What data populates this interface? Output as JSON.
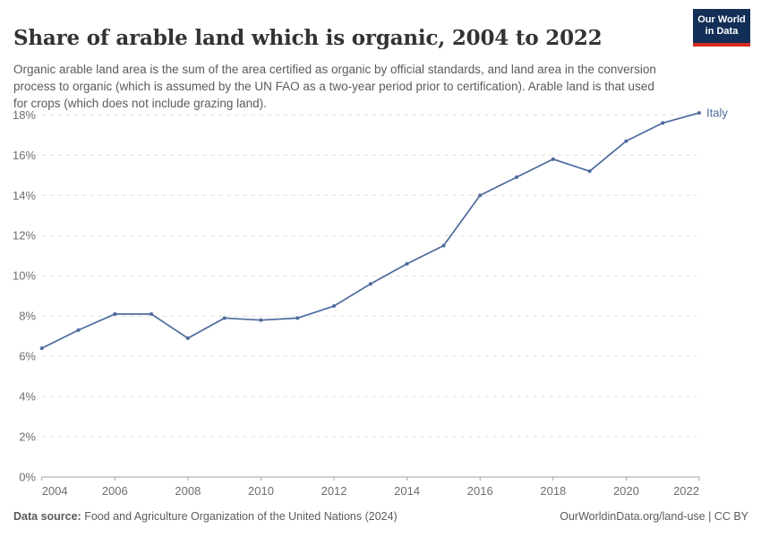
{
  "header": {
    "title": "Share of arable land which is organic, 2004 to 2022",
    "subtitle": "Organic arable land area is the sum of the area certified as organic by official standards, and land area in the conversion process to organic (which is assumed by the UN FAO as a two-year period prior to certification). Arable land is that used for crops (which does not include grazing land).",
    "logo": {
      "line1": "Our World",
      "line2": "in Data"
    }
  },
  "chart_data": {
    "type": "line",
    "title": "Share of arable land which is organic, 2004 to 2022",
    "x": [
      2004,
      2005,
      2006,
      2007,
      2008,
      2009,
      2010,
      2011,
      2012,
      2013,
      2014,
      2015,
      2016,
      2017,
      2018,
      2019,
      2020,
      2021,
      2022
    ],
    "series": [
      {
        "name": "Italy",
        "color": "#4C6A9C",
        "values": [
          6.4,
          7.3,
          8.1,
          8.1,
          6.9,
          7.9,
          7.8,
          7.9,
          8.5,
          9.6,
          10.6,
          11.5,
          14.0,
          14.9,
          15.8,
          15.2,
          16.7,
          17.6,
          18.1
        ]
      }
    ],
    "xlabel": "",
    "ylabel": "",
    "xlim": [
      2004,
      2022
    ],
    "ylim": [
      0,
      18
    ],
    "ytick_step": 2,
    "ytick_suffix": "%",
    "xticks": [
      2004,
      2006,
      2008,
      2010,
      2012,
      2014,
      2016,
      2018,
      2020,
      2022
    ],
    "grid": "horizontal-dashed",
    "legend_position": "end-of-line",
    "end_label": "Italy"
  },
  "colors": {
    "line": "#4C6A9C",
    "grid": "#dcdcdc",
    "axis": "#a5a5a5",
    "tick_text": "#6e6e6e",
    "logo_bg": "#132f57",
    "logo_accent": "#d42b21"
  },
  "footer": {
    "source_label": "Data source:",
    "source_text": " Food and Agriculture Organization of the United Nations (2024)",
    "attribution": "OurWorldinData.org/land-use | CC BY"
  }
}
